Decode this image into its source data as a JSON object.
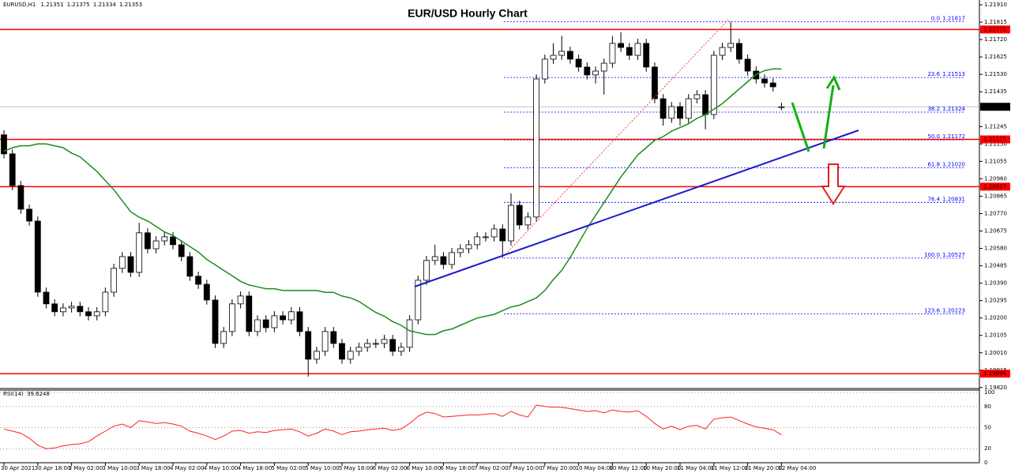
{
  "chart_data": {
    "type": "candlestick",
    "title": "EUR/USD Hourly Chart",
    "symbol": "EURUSD,H1",
    "categories": [
      "30 Apr 2021",
      null,
      null,
      null,
      "30 Apr 18:00",
      null,
      null,
      null,
      "3 May 02:00",
      null,
      null,
      null,
      "3 May 10:00",
      null,
      null,
      null,
      "3 May 18:00",
      null,
      null,
      null,
      "4 May 02:00",
      null,
      null,
      null,
      "4 May 10:00",
      null,
      null,
      null,
      "4 May 18:00",
      null,
      null,
      null,
      "5 May 02:00",
      null,
      null,
      null,
      "5 May 10:00",
      null,
      null,
      null,
      "5 May 18:00",
      null,
      null,
      null,
      "6 May 02:00",
      null,
      null,
      null,
      "6 May 10:00",
      null,
      null,
      null,
      "6 May 18:00",
      null,
      null,
      null,
      "7 May 02:00",
      null,
      null,
      null,
      "7 May 10:00",
      null,
      null,
      null,
      "7 May 20:00",
      null,
      null,
      null,
      "10 May 04:00",
      null,
      null,
      null,
      "10 May 12:00",
      null,
      null,
      null,
      "10 May 20:00",
      null,
      null,
      null,
      "11 May 04:00",
      null,
      null,
      null,
      "11 May 12:00",
      null,
      null,
      null,
      "11 May 20:00",
      null,
      null,
      null,
      "12 May 04:00"
    ],
    "open": [
      1.212,
      1.21096,
      1.20923,
      1.20794,
      1.20729,
      1.20341,
      1.20277,
      1.20234,
      1.20255,
      1.20264,
      1.20234,
      1.20212,
      1.20234,
      1.20341,
      1.20471,
      1.20535,
      1.20449,
      1.20665,
      1.20578,
      1.20621,
      1.20643,
      1.206,
      1.20535,
      1.20428,
      1.20384,
      1.20298,
      1.20061,
      1.20126,
      1.20277,
      1.2032,
      1.20126,
      1.2019,
      1.20147,
      1.20212,
      1.2019,
      1.20234,
      1.20126,
      1.19975,
      1.20018,
      1.20126,
      1.20061,
      1.19975,
      1.20018,
      1.2004,
      1.20061,
      1.20061,
      1.20083,
      1.20018,
      1.2004,
      1.2019,
      1.20406,
      1.20514,
      1.20535,
      1.20492,
      1.20557,
      1.20578,
      1.206,
      1.20643,
      1.20643,
      1.20686,
      1.20621,
      1.20815,
      1.20708,
      1.20751,
      1.21505,
      1.21613,
      1.21634,
      1.21656,
      1.21613,
      1.2157,
      1.21527,
      1.21548,
      1.21591,
      1.21699,
      1.21677,
      1.21634,
      1.21699,
      1.2157,
      1.21397,
      1.2129,
      1.21354,
      1.2129,
      1.21397,
      1.21419,
      1.21311,
      1.21634,
      1.21677,
      1.21699,
      1.21613,
      1.21548,
      1.21505,
      1.21483,
      1.21351
    ],
    "high": [
      1.21225,
      1.21121,
      1.20948,
      1.20819,
      1.20754,
      1.20366,
      1.20302,
      1.2028,
      1.20289,
      1.20289,
      1.20259,
      1.20259,
      1.20366,
      1.20496,
      1.2056,
      1.2056,
      1.2072,
      1.2069,
      1.20646,
      1.20668,
      1.20668,
      1.20625,
      1.2056,
      1.20453,
      1.20409,
      1.20323,
      1.20151,
      1.20302,
      1.20345,
      1.20345,
      1.20215,
      1.20215,
      1.20237,
      1.20237,
      1.20259,
      1.20259,
      1.20151,
      1.20043,
      1.20151,
      1.20151,
      1.20086,
      1.20043,
      1.20065,
      1.20086,
      1.20086,
      1.20108,
      1.20108,
      1.20065,
      1.20215,
      1.20431,
      1.20539,
      1.206,
      1.2056,
      1.20582,
      1.20603,
      1.20625,
      1.20668,
      1.20668,
      1.20711,
      1.20711,
      1.2088,
      1.2084,
      1.20776,
      1.2153,
      1.21638,
      1.217,
      1.2174,
      1.21681,
      1.21638,
      1.21595,
      1.21573,
      1.21616,
      1.2174,
      1.2176,
      1.21702,
      1.21724,
      1.21724,
      1.21595,
      1.21422,
      1.21379,
      1.21379,
      1.21422,
      1.21444,
      1.21444,
      1.21659,
      1.21702,
      1.21817,
      1.21724,
      1.21638,
      1.21573,
      1.2153,
      1.21508,
      1.21375
    ],
    "low": [
      1.21071,
      1.20898,
      1.20769,
      1.20704,
      1.20316,
      1.20252,
      1.20209,
      1.20209,
      1.2023,
      1.20209,
      1.20187,
      1.20187,
      1.20209,
      1.20316,
      1.20446,
      1.20424,
      1.20424,
      1.20553,
      1.20553,
      1.20596,
      1.20575,
      1.2051,
      1.20403,
      1.20359,
      1.20273,
      1.20036,
      1.20036,
      1.20101,
      1.20252,
      1.20101,
      1.20101,
      1.20122,
      1.20122,
      1.20165,
      1.20165,
      1.20101,
      1.1988,
      1.1995,
      1.19993,
      1.20036,
      1.1995,
      1.1995,
      1.19993,
      1.20015,
      1.20036,
      1.20036,
      1.19993,
      1.19993,
      1.20015,
      1.20165,
      1.20381,
      1.20489,
      1.20467,
      1.20467,
      1.20532,
      1.20553,
      1.20575,
      1.20618,
      1.20618,
      1.20527,
      1.20596,
      1.20683,
      1.20683,
      1.20726,
      1.2148,
      1.21588,
      1.21609,
      1.21588,
      1.21545,
      1.21502,
      1.2148,
      1.2142,
      1.21566,
      1.21652,
      1.21609,
      1.21609,
      1.21545,
      1.21372,
      1.2125,
      1.21265,
      1.2125,
      1.21265,
      1.21372,
      1.2123,
      1.21286,
      1.21609,
      1.21652,
      1.21588,
      1.21523,
      1.2148,
      1.21458,
      1.21437,
      1.21334
    ],
    "close": [
      1.21096,
      1.20923,
      1.20794,
      1.20729,
      1.20341,
      1.20277,
      1.20234,
      1.20255,
      1.20264,
      1.20234,
      1.20212,
      1.20234,
      1.20341,
      1.20471,
      1.20535,
      1.20449,
      1.20665,
      1.20578,
      1.20621,
      1.20643,
      1.206,
      1.20535,
      1.20428,
      1.20384,
      1.20298,
      1.20061,
      1.20126,
      1.20277,
      1.2032,
      1.20126,
      1.2019,
      1.20147,
      1.20212,
      1.2019,
      1.20234,
      1.20126,
      1.19975,
      1.20018,
      1.20126,
      1.20061,
      1.19975,
      1.20018,
      1.2004,
      1.20061,
      1.20061,
      1.20083,
      1.20018,
      1.2004,
      1.2019,
      1.20406,
      1.20514,
      1.20535,
      1.20492,
      1.20557,
      1.20578,
      1.206,
      1.20643,
      1.20643,
      1.20686,
      1.20621,
      1.20815,
      1.20708,
      1.20751,
      1.21505,
      1.21613,
      1.21634,
      1.21656,
      1.21613,
      1.2157,
      1.21527,
      1.21548,
      1.21591,
      1.21699,
      1.21677,
      1.21634,
      1.21699,
      1.2157,
      1.21397,
      1.2129,
      1.21354,
      1.2129,
      1.21397,
      1.21419,
      1.21311,
      1.21634,
      1.21677,
      1.21699,
      1.21613,
      1.21548,
      1.21505,
      1.21483,
      1.21462,
      1.21353
    ],
    "up_color": "#ffffff",
    "down_color": "#000000",
    "ma": {
      "color": "#1f8a1f",
      "values": [
        1.2111,
        1.2113,
        1.2114,
        1.2114,
        1.2115,
        1.2115,
        1.2114,
        1.2113,
        1.211,
        1.2108,
        1.2104,
        1.21,
        1.2095,
        1.209,
        1.2084,
        1.2078,
        1.2075,
        1.2073,
        1.207,
        1.2067,
        1.2065,
        1.2062,
        1.2059,
        1.2056,
        1.2052,
        1.2049,
        1.2046,
        1.2043,
        1.204,
        1.2038,
        1.2037,
        1.2036,
        1.2036,
        1.2035,
        1.2035,
        1.2035,
        1.2035,
        1.2035,
        1.2034,
        1.2034,
        1.2032,
        1.2031,
        1.2029,
        1.2026,
        1.2023,
        1.2021,
        1.2018,
        1.2016,
        1.2013,
        1.2012,
        1.2011,
        1.2011,
        1.2013,
        1.2014,
        1.2016,
        1.2018,
        1.202,
        1.2021,
        1.2022,
        1.2024,
        1.2026,
        1.2027,
        1.2029,
        1.2031,
        1.2035,
        1.2041,
        1.2046,
        1.2053,
        1.2061,
        1.2069,
        1.2076,
        1.2083,
        1.209,
        1.2097,
        1.2103,
        1.2109,
        1.2113,
        1.2117,
        1.2119,
        1.2122,
        1.2124,
        1.2126,
        1.2129,
        1.2131,
        1.2134,
        1.2137,
        1.2141,
        1.2145,
        1.2149,
        1.2153,
        1.2155,
        1.2156,
        1.2156
      ]
    },
    "levels": [
      {
        "value": 1.21775
      },
      {
        "value": 1.21175
      },
      {
        "value": 1.20917
      },
      {
        "value": 1.19896
      }
    ],
    "level_color": "#ff0000",
    "fib": {
      "color": "#0000ff",
      "levels": [
        {
          "label": "0.0",
          "price": 1.21817
        },
        {
          "label": "23.6",
          "price": 1.21513
        },
        {
          "label": "38.2",
          "price": 1.21324
        },
        {
          "label": "50.0",
          "price": 1.21172
        },
        {
          "label": "61.8",
          "price": {
            "value": 1.2102,
            "label": "1.21020"
          }
        },
        {
          "label": "76.4",
          "price": 1.20831
        },
        {
          "label": "100.0",
          "price": 1.20527
        },
        {
          "label": "123.6",
          "price": 1.20223
        }
      ]
    },
    "ylim": [
      1.19815,
      1.21936
    ],
    "yticks": [
      {
        "value": 1.2191,
        "label": "1.21910"
      },
      1.21815,
      {
        "value": 1.2172,
        "label": "1.21720"
      },
      1.21625,
      {
        "value": 1.2153,
        "label": "1.21530"
      },
      1.21435,
      1.21245,
      {
        "value": 1.2115,
        "label": "1.21150"
      },
      1.21055,
      {
        "value": 1.2096,
        "label": "1.20960"
      },
      1.20865,
      {
        "value": 1.2077,
        "label": "1.20770"
      },
      1.20675,
      {
        "value": 1.2058,
        "label": "1.20580"
      },
      1.20485,
      {
        "value": 1.2039,
        "label": "1.20390"
      },
      1.20295,
      {
        "value": 1.202,
        "label": "1.20200"
      },
      1.20105,
      {
        "value": 1.2001,
        "label": "1.20010"
      },
      1.19915,
      {
        "value": 1.1982,
        "label": "1.19820"
      }
    ],
    "rsi": {
      "label": "RSI(14)",
      "color": "#ff2020",
      "values": [
        48,
        45,
        42,
        35,
        25,
        20,
        21,
        24,
        26,
        27,
        30,
        38,
        45,
        52,
        55,
        50,
        60,
        58,
        56,
        57,
        55,
        52,
        45,
        42,
        38,
        33,
        38,
        45,
        46,
        42,
        44,
        43,
        46,
        47,
        48,
        44,
        38,
        42,
        48,
        45,
        40,
        44,
        45,
        47,
        48,
        49,
        46,
        48,
        56,
        66,
        72,
        70,
        65,
        66,
        67,
        68,
        68,
        69,
        70,
        66,
        73,
        68,
        65,
        82,
        80,
        79,
        79,
        77,
        75,
        73,
        74,
        71,
        75,
        73,
        72,
        74,
        66,
        56,
        48,
        52,
        47,
        52,
        53,
        48,
        62,
        64,
        65,
        60,
        55,
        51,
        49,
        47,
        39.6248
      ],
      "ylim": [
        0,
        100
      ],
      "yticks": [
        100,
        80,
        50,
        20,
        0
      ]
    }
  }
}
